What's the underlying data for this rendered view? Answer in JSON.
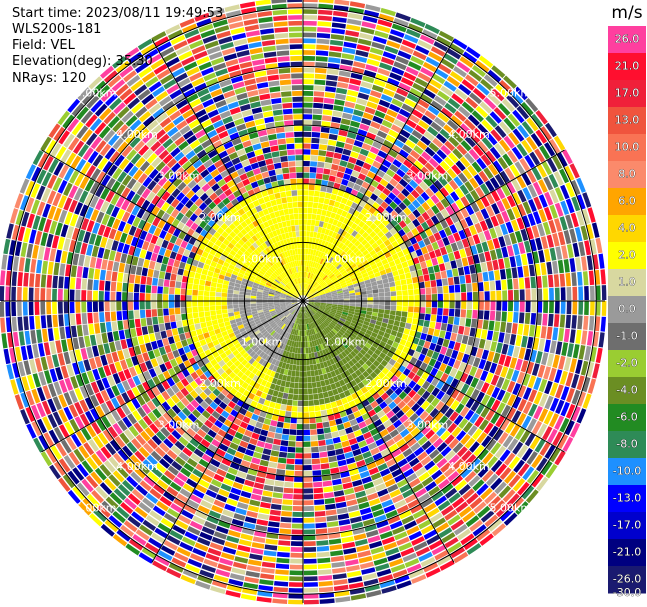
{
  "info": {
    "start_time": "Start time: 2023/08/11 19:49:53",
    "instrument": "WLS200s-181",
    "field": "Field: VEL",
    "elevation": "Elevation(deg): 35.30",
    "nrays": "NRays: 120"
  },
  "chart_data": {
    "type": "heatmap",
    "subtype": "polar-ppi",
    "field": "VEL",
    "units": "m/s",
    "n_rays": 120,
    "range_ring_labels": [
      "1.00km",
      "2.00km",
      "3.00km",
      "4.00km",
      "5.00km"
    ],
    "range_ring_km": [
      1,
      2,
      3,
      4,
      5
    ],
    "spoke_spacing_deg": 30,
    "colorbar": {
      "title": "m/s",
      "tick_labels": [
        "26.0",
        "21.0",
        "17.0",
        "13.0",
        "10.0",
        "8.0",
        "6.0",
        "4.0",
        "2.0",
        "1.0",
        "0.0",
        "-1.0",
        "-2.0",
        "-4.0",
        "-6.0",
        "-8.0",
        "-10.0",
        "-13.0",
        "-17.0",
        "-21.0",
        "-26.0",
        "-30.0"
      ],
      "bin_colors": [
        "#ff3f9f",
        "#ff0f2f",
        "#f0203a",
        "#f0543d",
        "#f97354",
        "#fb8a6b",
        "#ffa500",
        "#ffd700",
        "#ffff00",
        "#d8d8a0",
        "#9a9a9a",
        "#6e6e6e",
        "#9acd32",
        "#6b8e23",
        "#228b22",
        "#2e8b57",
        "#1e90ff",
        "#0000ff",
        "#0000cd",
        "#000080",
        "#1a1a70"
      ]
    },
    "sectors": [
      {
        "name": "inner-near-north",
        "azimuth_deg": [
          290,
          70
        ],
        "range_km": [
          0,
          1.8
        ],
        "velocity_ms": 2.0
      },
      {
        "name": "inner-west-south",
        "azimuth_deg": [
          200,
          290
        ],
        "range_km": [
          0,
          1.3
        ],
        "velocity_ms": 0.0
      },
      {
        "name": "inner-east",
        "azimuth_deg": [
          70,
          95
        ],
        "range_km": [
          0,
          1.6
        ],
        "velocity_ms": 0.0
      },
      {
        "name": "inner-south",
        "azimuth_deg": [
          95,
          200
        ],
        "range_km": [
          0,
          1.8
        ],
        "velocity_ms": -4.0
      }
    ],
    "outer_noise_from_km": 2.0
  }
}
